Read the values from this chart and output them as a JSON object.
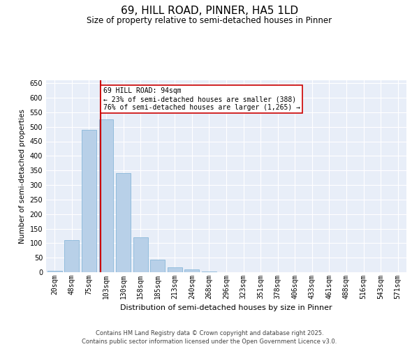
{
  "title": "69, HILL ROAD, PINNER, HA5 1LD",
  "subtitle": "Size of property relative to semi-detached houses in Pinner",
  "xlabel": "Distribution of semi-detached houses by size in Pinner",
  "ylabel": "Number of semi-detached properties",
  "footer_line1": "Contains HM Land Registry data © Crown copyright and database right 2025.",
  "footer_line2": "Contains public sector information licensed under the Open Government Licence v3.0.",
  "annotation_title": "69 HILL ROAD: 94sqm",
  "annotation_line1": "← 23% of semi-detached houses are smaller (388)",
  "annotation_line2": "76% of semi-detached houses are larger (1,265) →",
  "bar_color": "#b8d0e8",
  "bar_edge_color": "#7aafd4",
  "vline_color": "#cc0000",
  "background_color": "#e8eef8",
  "categories": [
    "20sqm",
    "48sqm",
    "75sqm",
    "103sqm",
    "130sqm",
    "158sqm",
    "185sqm",
    "213sqm",
    "240sqm",
    "268sqm",
    "296sqm",
    "323sqm",
    "351sqm",
    "378sqm",
    "406sqm",
    "433sqm",
    "461sqm",
    "488sqm",
    "516sqm",
    "543sqm",
    "571sqm"
  ],
  "values": [
    5,
    110,
    490,
    525,
    340,
    120,
    43,
    18,
    10,
    2,
    1,
    0,
    0,
    0,
    0,
    0,
    0,
    0,
    0,
    0,
    1
  ],
  "ylim": [
    0,
    660
  ],
  "yticks": [
    0,
    50,
    100,
    150,
    200,
    250,
    300,
    350,
    400,
    450,
    500,
    550,
    600,
    650
  ],
  "title_fontsize": 11,
  "subtitle_fontsize": 8.5,
  "xlabel_fontsize": 8,
  "ylabel_fontsize": 7.5,
  "tick_fontsize": 7,
  "footer_fontsize": 6
}
